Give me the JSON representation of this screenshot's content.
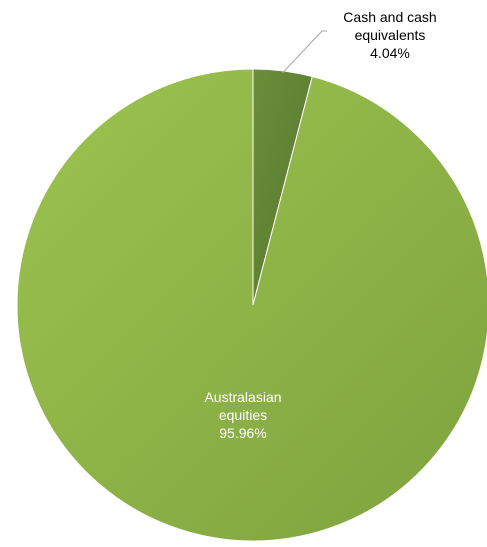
{
  "chart_data": {
    "type": "pie",
    "title": "",
    "slices": [
      {
        "name_lines": [
          "Cash and cash",
          "equivalents"
        ],
        "name": "Cash and cash equivalents",
        "value": 4.04,
        "value_label": "4.04%",
        "color": "#5e8134",
        "label_color": "#000000",
        "label_placement": "outside"
      },
      {
        "name_lines": [
          "Australasian",
          "equities"
        ],
        "name": "Australasian equities",
        "value": 95.96,
        "value_label": "95.96%",
        "color": "#8fb548",
        "label_color": "#ffffff",
        "label_placement": "inside"
      }
    ],
    "start_angle": "12 o'clock, clockwise",
    "legend": "none"
  },
  "colors": {
    "leader_line": "#a6a6a6",
    "slice_border": "#ffffff"
  }
}
